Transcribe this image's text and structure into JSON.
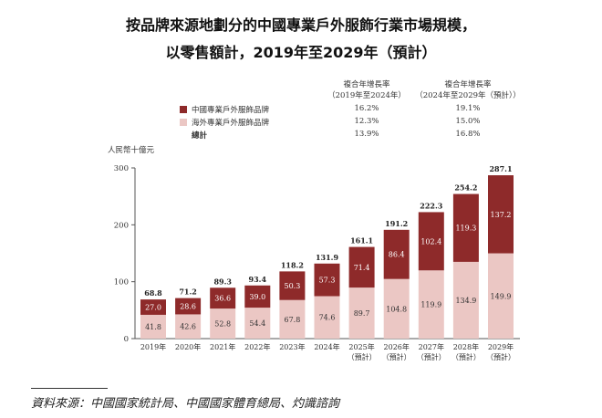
{
  "title_line1": "按品牌來源地劃分的中國專業戶外服飾行業市場規模，",
  "title_line2": "以零售額計，2019年至2029年（預計）",
  "cagr_table": {
    "col1_header": [
      "複合年增長率",
      "（2019年至2024年）"
    ],
    "col2_header": [
      "複合年增長率",
      "（2024年至2029年（預計））"
    ],
    "rows": [
      {
        "label": "中國專業戶外服飾品牌",
        "cagr1": "16.2%",
        "cagr2": "19.1%"
      },
      {
        "label": "海外專業戶外服飾品牌",
        "cagr1": "12.3%",
        "cagr2": "15.0%"
      },
      {
        "label": "總計",
        "cagr1": "13.9%",
        "cagr2": "16.8%"
      }
    ]
  },
  "source": "資料來源：中國國家統計局、中國國家體育總局、灼識諮詢",
  "colors": {
    "domestic": "#8e2a2a",
    "overseas": "#ebc7c4"
  },
  "chart_data": {
    "type": "bar",
    "stacked": true,
    "ylabel": "人民幣十億元",
    "ylim": [
      0,
      300
    ],
    "yticks": [
      "0",
      "100",
      "200",
      "300"
    ],
    "categories": [
      [
        "2019年",
        ""
      ],
      [
        "2020年",
        ""
      ],
      [
        "2021年",
        ""
      ],
      [
        "2022年",
        ""
      ],
      [
        "2023年",
        ""
      ],
      [
        "2024年",
        ""
      ],
      [
        "2025年",
        "（預計）"
      ],
      [
        "2026年",
        "（預計）"
      ],
      [
        "2027年",
        "（預計）"
      ],
      [
        "2028年",
        "（預計）"
      ],
      [
        "2029年",
        "（預計）"
      ]
    ],
    "series": [
      {
        "name": "海外專業戶外服飾品牌",
        "values": [
          41.8,
          42.6,
          52.8,
          54.4,
          67.8,
          74.6,
          89.7,
          104.8,
          119.9,
          134.9,
          149.9
        ]
      },
      {
        "name": "中國專業戶外服飾品牌",
        "values": [
          27.0,
          28.6,
          36.6,
          39.0,
          50.3,
          57.3,
          71.4,
          86.4,
          102.4,
          119.3,
          137.2
        ]
      }
    ],
    "totals": [
      68.8,
      71.2,
      89.3,
      93.4,
      118.2,
      131.9,
      161.1,
      191.2,
      222.3,
      254.2,
      287.1
    ]
  }
}
